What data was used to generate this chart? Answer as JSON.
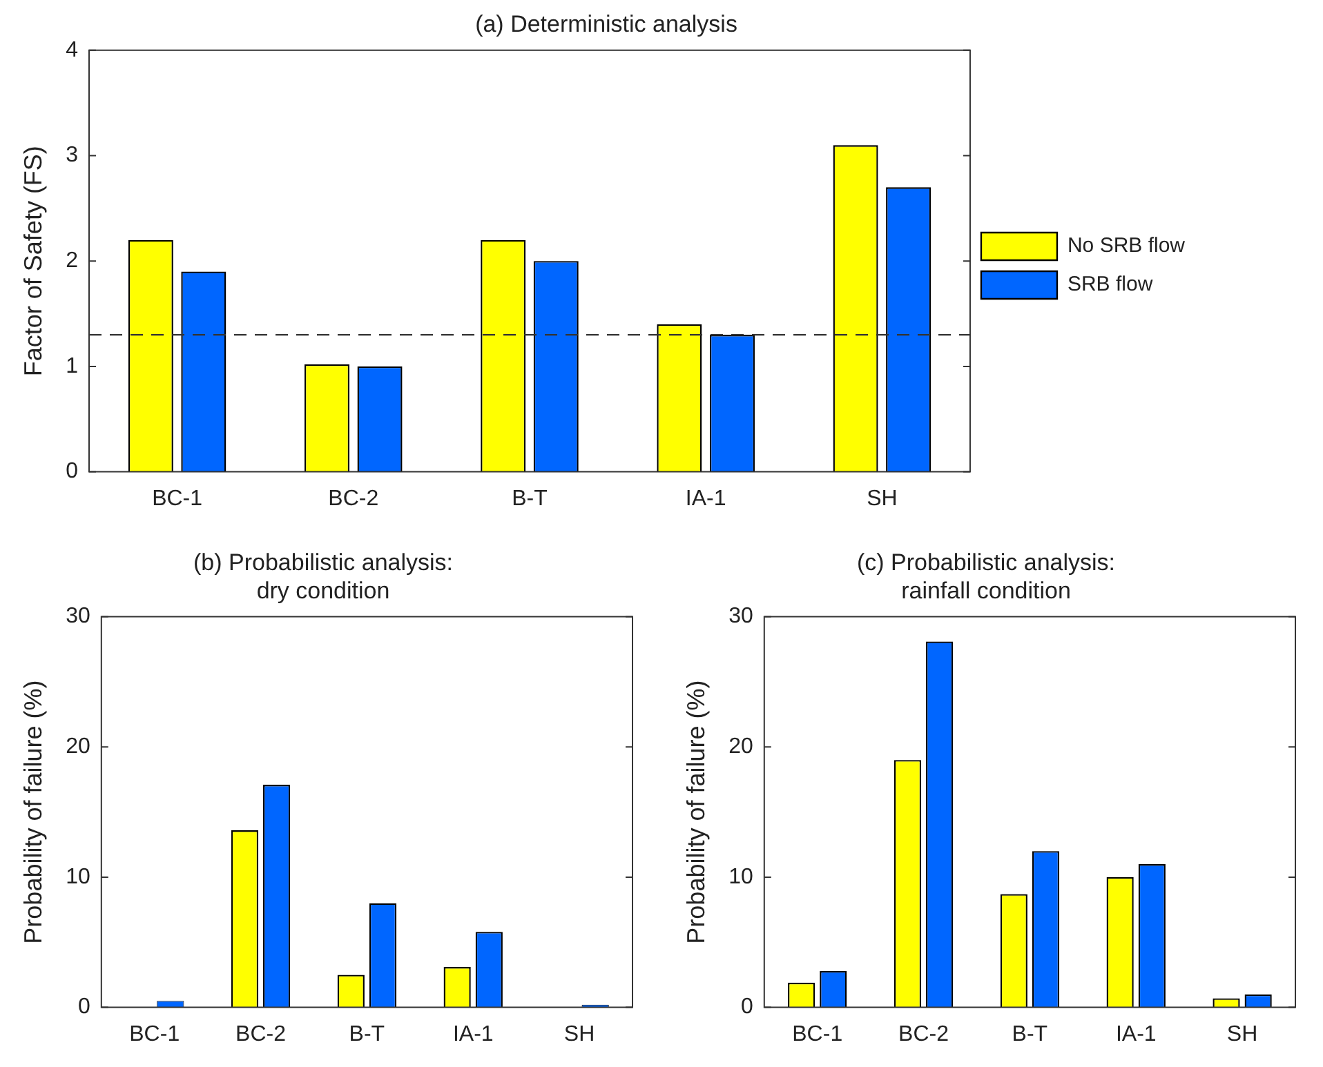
{
  "chart_data": [
    {
      "type": "bar",
      "title": "(a) Deterministic analysis",
      "ylabel": "Factor of Safety (FS)",
      "categories": [
        "BC-1",
        "BC-2",
        "B-T",
        "IA-1",
        "SH"
      ],
      "series": [
        {
          "name": "No SRB flow",
          "color": "#ffff00",
          "values": [
            2.2,
            1.02,
            2.2,
            1.4,
            3.1
          ]
        },
        {
          "name": "SRB flow",
          "color": "#0066ff",
          "values": [
            1.9,
            1.0,
            2.0,
            1.3,
            2.7
          ]
        }
      ],
      "ylim": [
        0,
        4
      ],
      "yticks": [
        0,
        1,
        2,
        3,
        4
      ],
      "legend": "right",
      "ref_lines": [
        {
          "axis": "y",
          "value": 1.3,
          "line_style": "dashed",
          "color": "#333333"
        }
      ]
    },
    {
      "type": "bar",
      "title": "(b) Probabilistic analysis:\ndry condition",
      "ylabel": "Probability of failure (%)",
      "categories": [
        "BC-1",
        "BC-2",
        "B-T",
        "IA-1",
        "SH"
      ],
      "series": [
        {
          "color": "#ffff00",
          "values": [
            0,
            13.6,
            2.5,
            3.1,
            0
          ]
        },
        {
          "color": "#0066ff",
          "values": [
            0.5,
            17.1,
            8.0,
            5.8,
            0.2
          ]
        }
      ],
      "ylim": [
        0,
        30
      ],
      "yticks": [
        0,
        10,
        20,
        30
      ]
    },
    {
      "type": "bar",
      "title": "(c) Probabilistic analysis:\nrainfall condition",
      "ylabel": "Probability of failure (%)",
      "categories": [
        "BC-1",
        "BC-2",
        "B-T",
        "IA-1",
        "SH"
      ],
      "series": [
        {
          "color": "#ffff00",
          "values": [
            1.9,
            19,
            8.7,
            10,
            0.7
          ]
        },
        {
          "color": "#0066ff",
          "values": [
            2.8,
            28.1,
            12,
            11,
            1.0
          ]
        }
      ],
      "ylim": [
        0,
        30
      ],
      "yticks": [
        0,
        10,
        20,
        30
      ]
    }
  ]
}
